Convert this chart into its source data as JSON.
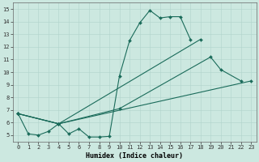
{
  "xlabel": "Humidex (Indice chaleur)",
  "xlim": [
    -0.5,
    23.5
  ],
  "ylim": [
    4.5,
    15.5
  ],
  "xticks": [
    0,
    1,
    2,
    3,
    4,
    5,
    6,
    7,
    8,
    9,
    10,
    11,
    12,
    13,
    14,
    15,
    16,
    17,
    18,
    19,
    20,
    21,
    22,
    23
  ],
  "yticks": [
    5,
    6,
    7,
    8,
    9,
    10,
    11,
    12,
    13,
    14,
    15
  ],
  "bg_color": "#cce8e0",
  "grid_color": "#b0d4cc",
  "line_color": "#1a6b5a",
  "line1_x": [
    0,
    1,
    2,
    3,
    4,
    5,
    6,
    7,
    8,
    9,
    10,
    11,
    12,
    13,
    14,
    15,
    16,
    17
  ],
  "line1_y": [
    6.7,
    5.1,
    5.0,
    5.3,
    5.9,
    5.1,
    5.5,
    4.85,
    4.85,
    4.9,
    9.7,
    12.5,
    13.9,
    14.9,
    14.3,
    14.4,
    14.4,
    12.6
  ],
  "line2_x": [
    0,
    4,
    18
  ],
  "line2_y": [
    6.7,
    5.9,
    12.6
  ],
  "line3_x": [
    0,
    4,
    10,
    19,
    20,
    22
  ],
  "line3_y": [
    6.7,
    5.9,
    7.1,
    11.2,
    10.2,
    9.3
  ],
  "line4_x": [
    0,
    4,
    23
  ],
  "line4_y": [
    6.7,
    5.9,
    9.3
  ]
}
